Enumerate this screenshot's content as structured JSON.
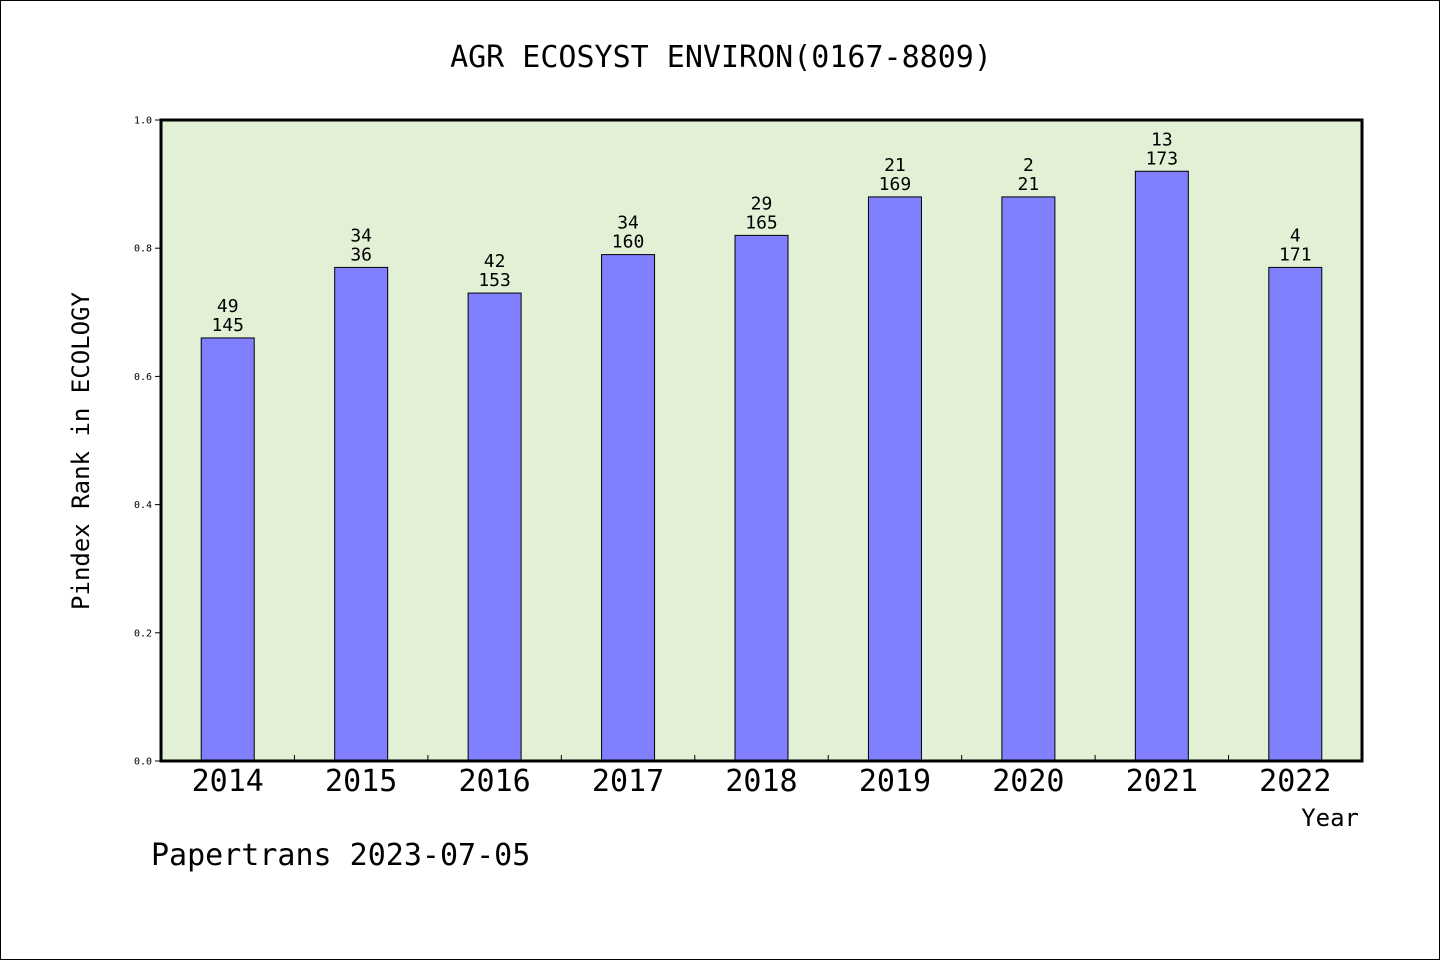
{
  "chart_data": {
    "type": "bar",
    "title": "AGR ECOSYST ENVIRON(0167-8809)",
    "xlabel": "Year",
    "ylabel": "Pindex Rank in ECOLOGY",
    "footer": "Papertrans 2023-07-05",
    "categories": [
      "2014",
      "2015",
      "2016",
      "2017",
      "2018",
      "2019",
      "2020",
      "2021",
      "2022"
    ],
    "values": [
      0.66,
      0.77,
      0.73,
      0.79,
      0.82,
      0.88,
      0.88,
      0.92,
      0.77
    ],
    "label_top": [
      "49",
      "34",
      "42",
      "34",
      "29",
      "21",
      "2",
      "13",
      "4"
    ],
    "label_bottom": [
      "145",
      "36",
      "153",
      "160",
      "165",
      "169",
      "21",
      "173",
      "171"
    ],
    "ylim": [
      0,
      1.0
    ],
    "yticks": [
      "0.0",
      "0.2",
      "0.4",
      "0.6",
      "0.8",
      "1.0"
    ],
    "grid": false,
    "colors": {
      "plot_background": "#e2f0d6",
      "bar_fill": "#8080ff",
      "bar_stroke": "#000000"
    }
  }
}
